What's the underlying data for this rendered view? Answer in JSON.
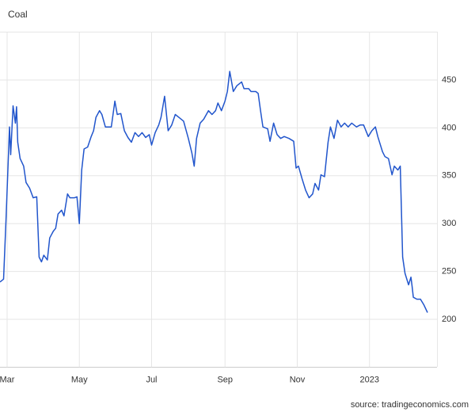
{
  "chart_data": {
    "type": "line",
    "title": "Coal",
    "source": "source: tradingeconomics.com",
    "xlim": [
      -6,
      363
    ],
    "ylim": [
      150,
      500
    ],
    "xticks": [
      {
        "value": 0,
        "label": "Mar"
      },
      {
        "value": 61,
        "label": "May"
      },
      {
        "value": 122,
        "label": "Jul"
      },
      {
        "value": 184,
        "label": "Sep"
      },
      {
        "value": 245,
        "label": "Nov"
      },
      {
        "value": 306,
        "label": "2023"
      }
    ],
    "yticks": [
      200,
      250,
      300,
      350,
      400,
      450
    ],
    "grid": true,
    "series": [
      {
        "color": "#2155cc",
        "x": [
          -6,
          -3,
          -1,
          2,
          3,
          5,
          7,
          8,
          9,
          11,
          14,
          16,
          19,
          22,
          25,
          27,
          29,
          31,
          34,
          36,
          39,
          41,
          43,
          46,
          48,
          51,
          53,
          57,
          59,
          61,
          63,
          65,
          68,
          71,
          73,
          75,
          78,
          80,
          83,
          86,
          88,
          91,
          93,
          96,
          99,
          102,
          105,
          108,
          111,
          114,
          117,
          120,
          122,
          125,
          128,
          130,
          133,
          136,
          139,
          142,
          145,
          149,
          153,
          156,
          158,
          160,
          163,
          166,
          170,
          173,
          176,
          178,
          181,
          184,
          186,
          188,
          191,
          194,
          198,
          200,
          204,
          206,
          210,
          212,
          214,
          216,
          220,
          222,
          225,
          228,
          231,
          234,
          238,
          242,
          244,
          246,
          249,
          252,
          255,
          258,
          260,
          263,
          265,
          268,
          271,
          273,
          276,
          279,
          282,
          285,
          288,
          291,
          295,
          298,
          301,
          305,
          308,
          311,
          313,
          317,
          319,
          322,
          325,
          327,
          330,
          332,
          334,
          336,
          339,
          341,
          342,
          343,
          346,
          349,
          352,
          355
        ],
        "values": [
          239,
          242,
          302,
          401,
          372,
          423,
          405,
          422,
          385,
          368,
          360,
          343,
          337,
          327,
          328,
          265,
          260,
          267,
          262,
          285,
          292,
          295,
          310,
          314,
          308,
          331,
          327,
          327,
          328,
          300,
          356,
          378,
          380,
          391,
          397,
          411,
          418,
          414,
          401,
          401,
          401,
          428,
          414,
          415,
          397,
          390,
          385,
          395,
          391,
          395,
          390,
          393,
          382,
          395,
          403,
          411,
          433,
          397,
          403,
          414,
          411,
          407,
          389,
          374,
          360,
          389,
          405,
          409,
          418,
          414,
          418,
          426,
          418,
          428,
          438,
          459,
          438,
          444,
          448,
          441,
          441,
          438,
          438,
          436,
          418,
          401,
          399,
          386,
          405,
          393,
          389,
          391,
          389,
          386,
          358,
          360,
          347,
          335,
          327,
          331,
          342,
          335,
          351,
          349,
          385,
          401,
          389,
          408,
          401,
          405,
          401,
          405,
          401,
          403,
          403,
          391,
          397,
          401,
          391,
          375,
          370,
          368,
          351,
          360,
          356,
          360,
          265,
          248,
          236,
          244,
          234,
          223,
          221,
          221,
          215,
          207
        ]
      }
    ]
  }
}
